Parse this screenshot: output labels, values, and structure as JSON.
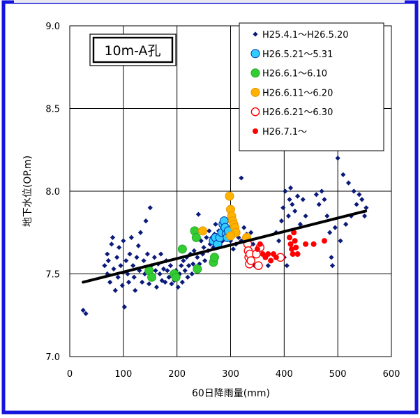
{
  "chart_data": {
    "type": "scatter",
    "title": "10m-A孔",
    "xlabel": "60日降雨量(mm)",
    "ylabel": "地下水位(OP.m)",
    "xlim": [
      0,
      600
    ],
    "ylim": [
      7.0,
      9.0
    ],
    "xticks": [
      "0",
      "100",
      "200",
      "300",
      "400",
      "500",
      "600"
    ],
    "yticks": [
      "7.0",
      "7.5",
      "8.0",
      "8.5",
      "9.0"
    ],
    "grid": true,
    "legend_position": "top-right",
    "series": [
      {
        "name": "H25.4.1～H26.5.20",
        "marker": "diamond",
        "color": "#0a1a7a",
        "points": [
          [
            25,
            7.28
          ],
          [
            30,
            7.26
          ],
          [
            65,
            7.55
          ],
          [
            70,
            7.5
          ],
          [
            70,
            7.62
          ],
          [
            72,
            7.58
          ],
          [
            75,
            7.45
          ],
          [
            78,
            7.68
          ],
          [
            80,
            7.72
          ],
          [
            82,
            7.53
          ],
          [
            85,
            7.4
          ],
          [
            88,
            7.6
          ],
          [
            90,
            7.48
          ],
          [
            92,
            7.66
          ],
          [
            95,
            7.55
          ],
          [
            98,
            7.43
          ],
          [
            100,
            7.7
          ],
          [
            102,
            7.3
          ],
          [
            105,
            7.58
          ],
          [
            108,
            7.5
          ],
          [
            110,
            7.45
          ],
          [
            112,
            7.62
          ],
          [
            115,
            7.72
          ],
          [
            118,
            7.55
          ],
          [
            120,
            7.48
          ],
          [
            122,
            7.4
          ],
          [
            125,
            7.6
          ],
          [
            128,
            7.67
          ],
          [
            130,
            7.52
          ],
          [
            132,
            7.75
          ],
          [
            135,
            7.45
          ],
          [
            138,
            7.58
          ],
          [
            140,
            7.5
          ],
          [
            142,
            7.82
          ],
          [
            145,
            7.62
          ],
          [
            148,
            7.44
          ],
          [
            150,
            7.9
          ],
          [
            152,
            7.55
          ],
          [
            155,
            7.48
          ],
          [
            158,
            7.6
          ],
          [
            160,
            7.52
          ],
          [
            162,
            7.42
          ],
          [
            165,
            7.56
          ],
          [
            168,
            7.5
          ],
          [
            170,
            7.62
          ],
          [
            172,
            7.46
          ],
          [
            175,
            7.53
          ],
          [
            178,
            7.45
          ],
          [
            180,
            7.58
          ],
          [
            182,
            7.52
          ],
          [
            185,
            7.48
          ],
          [
            188,
            7.55
          ],
          [
            190,
            7.44
          ],
          [
            192,
            7.5
          ],
          [
            195,
            7.46
          ],
          [
            198,
            7.52
          ],
          [
            200,
            7.48
          ],
          [
            202,
            7.42
          ],
          [
            205,
            7.5
          ],
          [
            208,
            7.55
          ],
          [
            210,
            7.45
          ],
          [
            212,
            7.58
          ],
          [
            215,
            7.52
          ],
          [
            218,
            7.6
          ],
          [
            220,
            7.48
          ],
          [
            222,
            7.55
          ],
          [
            225,
            7.62
          ],
          [
            228,
            7.5
          ],
          [
            230,
            7.56
          ],
          [
            232,
            7.64
          ],
          [
            235,
            7.52
          ],
          [
            238,
            7.6
          ],
          [
            240,
            7.86
          ],
          [
            242,
            7.56
          ],
          [
            245,
            7.7
          ],
          [
            248,
            7.62
          ],
          [
            250,
            7.66
          ],
          [
            252,
            7.58
          ],
          [
            255,
            7.72
          ],
          [
            258,
            7.64
          ],
          [
            260,
            7.76
          ],
          [
            262,
            7.68
          ],
          [
            265,
            7.72
          ],
          [
            268,
            7.66
          ],
          [
            270,
            7.74
          ],
          [
            272,
            7.8
          ],
          [
            275,
            7.7
          ],
          [
            278,
            7.76
          ],
          [
            280,
            7.68
          ],
          [
            282,
            7.73
          ],
          [
            285,
            7.7
          ],
          [
            290,
            7.75
          ],
          [
            295,
            7.72
          ],
          [
            300,
            7.7
          ],
          [
            305,
            7.65
          ],
          [
            310,
            7.68
          ],
          [
            315,
            7.72
          ],
          [
            320,
            7.7
          ],
          [
            325,
            7.78
          ],
          [
            330,
            7.74
          ],
          [
            335,
            7.7
          ],
          [
            338,
            7.75
          ],
          [
            340,
            7.62
          ],
          [
            342,
            7.68
          ],
          [
            345,
            7.55
          ],
          [
            320,
            8.08
          ],
          [
            370,
            7.55
          ],
          [
            380,
            7.62
          ],
          [
            385,
            7.75
          ],
          [
            390,
            7.7
          ],
          [
            395,
            7.82
          ],
          [
            398,
            7.9
          ],
          [
            400,
            7.6
          ],
          [
            402,
            8.0
          ],
          [
            405,
            7.55
          ],
          [
            408,
            7.85
          ],
          [
            410,
            7.95
          ],
          [
            412,
            8.02
          ],
          [
            415,
            7.92
          ],
          [
            420,
            7.88
          ],
          [
            425,
            7.97
          ],
          [
            430,
            7.8
          ],
          [
            435,
            7.95
          ],
          [
            440,
            7.85
          ],
          [
            460,
            7.98
          ],
          [
            465,
            7.92
          ],
          [
            470,
            8.0
          ],
          [
            475,
            7.95
          ],
          [
            480,
            7.85
          ],
          [
            485,
            7.75
          ],
          [
            488,
            7.6
          ],
          [
            490,
            7.55
          ],
          [
            495,
            7.78
          ],
          [
            500,
            8.2
          ],
          [
            505,
            7.7
          ],
          [
            510,
            8.1
          ],
          [
            515,
            7.8
          ],
          [
            520,
            8.05
          ],
          [
            525,
            7.85
          ],
          [
            530,
            8.0
          ],
          [
            535,
            7.92
          ],
          [
            540,
            7.98
          ],
          [
            545,
            7.95
          ],
          [
            550,
            7.85
          ],
          [
            553,
            7.9
          ]
        ]
      },
      {
        "name": "H26.5.21～5.31",
        "marker": "circle",
        "color": "#33ccff",
        "stroke": "#0033aa",
        "points": [
          [
            268,
            7.7
          ],
          [
            272,
            7.72
          ],
          [
            276,
            7.68
          ],
          [
            280,
            7.72
          ],
          [
            284,
            7.75
          ],
          [
            286,
            7.8
          ],
          [
            288,
            7.82
          ],
          [
            290,
            7.78
          ],
          [
            292,
            7.74
          ],
          [
            294,
            7.72
          ],
          [
            296,
            7.76
          ]
        ]
      },
      {
        "name": "H26.6.1～6.10",
        "marker": "circle",
        "color": "#33cc33",
        "stroke": "#22aa22",
        "points": [
          [
            148,
            7.52
          ],
          [
            153,
            7.48
          ],
          [
            195,
            7.5
          ],
          [
            198,
            7.48
          ],
          [
            210,
            7.65
          ],
          [
            233,
            7.76
          ],
          [
            236,
            7.72
          ],
          [
            238,
            7.53
          ],
          [
            268,
            7.57
          ],
          [
            270,
            7.6
          ]
        ]
      },
      {
        "name": "H26.6.11～6.20",
        "marker": "circle",
        "color": "#ffb300",
        "stroke": "#e69500",
        "points": [
          [
            248,
            7.76
          ],
          [
            298,
            7.97
          ],
          [
            300,
            7.89
          ],
          [
            302,
            7.85
          ],
          [
            304,
            7.82
          ],
          [
            306,
            7.8
          ],
          [
            308,
            7.78
          ],
          [
            310,
            7.75
          ],
          [
            300,
            7.73
          ],
          [
            330,
            7.72
          ]
        ]
      },
      {
        "name": "H26.6.21～6.30",
        "marker": "open-circle",
        "color": "#ffffff",
        "stroke": "#ff0000",
        "points": [
          [
            332,
            7.68
          ],
          [
            333,
            7.64
          ],
          [
            334,
            7.6
          ],
          [
            335,
            7.56
          ],
          [
            336,
            7.62
          ],
          [
            338,
            7.58
          ],
          [
            348,
            7.62
          ],
          [
            352,
            7.55
          ],
          [
            355,
            7.66
          ],
          [
            393,
            7.6
          ]
        ]
      },
      {
        "name": "H26.7.1～",
        "marker": "dot",
        "color": "#ff0000",
        "stroke": "#ff0000",
        "points": [
          [
            350,
            7.65
          ],
          [
            355,
            7.68
          ],
          [
            360,
            7.62
          ],
          [
            365,
            7.6
          ],
          [
            370,
            7.62
          ],
          [
            375,
            7.58
          ],
          [
            380,
            7.62
          ],
          [
            385,
            7.6
          ],
          [
            410,
            7.72
          ],
          [
            412,
            7.68
          ],
          [
            414,
            7.65
          ],
          [
            416,
            7.62
          ],
          [
            418,
            7.75
          ],
          [
            420,
            7.7
          ],
          [
            422,
            7.66
          ],
          [
            425,
            7.62
          ],
          [
            440,
            7.68
          ],
          [
            455,
            7.68
          ],
          [
            475,
            7.7
          ]
        ]
      }
    ],
    "trendline": {
      "x": [
        25,
        552
      ],
      "y": [
        7.45,
        7.88
      ],
      "color": "#000000"
    }
  }
}
